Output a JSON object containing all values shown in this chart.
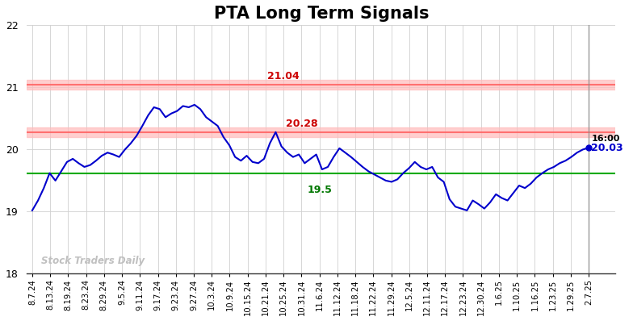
{
  "title": "PTA Long Term Signals",
  "title_fontsize": 15,
  "title_fontweight": "bold",
  "ylim": [
    18,
    22
  ],
  "yticks": [
    18,
    19,
    20,
    21,
    22
  ],
  "background_color": "#ffffff",
  "grid_color": "#d0d0d0",
  "line_color": "#0000cc",
  "line_width": 1.5,
  "hline_red_upper": 21.04,
  "hline_red_lower": 20.28,
  "hline_green": 19.62,
  "hline_red_alpha": 0.35,
  "hline_green_color": "#00aa00",
  "annotation_21_04": "21.04",
  "annotation_20_28": "20.28",
  "annotation_19_5": "19.5",
  "annotation_time": "16:00",
  "annotation_price": "20.03",
  "annotation_color_red": "#cc0000",
  "annotation_color_green": "#007700",
  "annotation_color_black": "#000000",
  "annotation_color_blue": "#0000cc",
  "watermark": "Stock Traders Daily",
  "watermark_color": "#c0c0c0",
  "last_price_dot_color": "#0000cc",
  "vline_color": "#888888",
  "x_labels": [
    "8.7.24",
    "8.13.24",
    "8.19.24",
    "8.23.24",
    "8.29.24",
    "9.5.24",
    "9.11.24",
    "9.17.24",
    "9.23.24",
    "9.27.24",
    "10.3.24",
    "10.9.24",
    "10.15.24",
    "10.21.24",
    "10.25.24",
    "10.31.24",
    "11.6.24",
    "11.12.24",
    "11.18.24",
    "11.22.24",
    "11.29.24",
    "12.5.24",
    "12.11.24",
    "12.17.24",
    "12.23.24",
    "12.30.24",
    "1.6.25",
    "1.10.25",
    "1.16.25",
    "1.23.25",
    "1.29.25",
    "2.7.25"
  ],
  "y_values": [
    19.02,
    19.18,
    19.38,
    19.62,
    19.5,
    19.65,
    19.8,
    19.85,
    19.78,
    19.72,
    19.75,
    19.82,
    19.9,
    19.95,
    19.92,
    19.88,
    20.0,
    20.1,
    20.22,
    20.38,
    20.55,
    20.68,
    20.65,
    20.52,
    20.58,
    20.62,
    20.7,
    20.68,
    20.72,
    20.65,
    20.52,
    20.45,
    20.38,
    20.2,
    20.07,
    19.88,
    19.82,
    19.9,
    19.8,
    19.78,
    19.85,
    20.1,
    20.28,
    20.05,
    19.95,
    19.88,
    19.92,
    19.78,
    19.85,
    19.92,
    19.68,
    19.72,
    19.88,
    20.02,
    19.95,
    19.88,
    19.8,
    19.72,
    19.65,
    19.6,
    19.55,
    19.5,
    19.48,
    19.52,
    19.62,
    19.7,
    19.8,
    19.72,
    19.68,
    19.72,
    19.55,
    19.48,
    19.2,
    19.08,
    19.05,
    19.02,
    19.18,
    19.12,
    19.05,
    19.15,
    19.28,
    19.22,
    19.18,
    19.3,
    19.42,
    19.38,
    19.45,
    19.55,
    19.62,
    19.68,
    19.72,
    19.78,
    19.82,
    19.88,
    19.95,
    20.0,
    20.03
  ]
}
